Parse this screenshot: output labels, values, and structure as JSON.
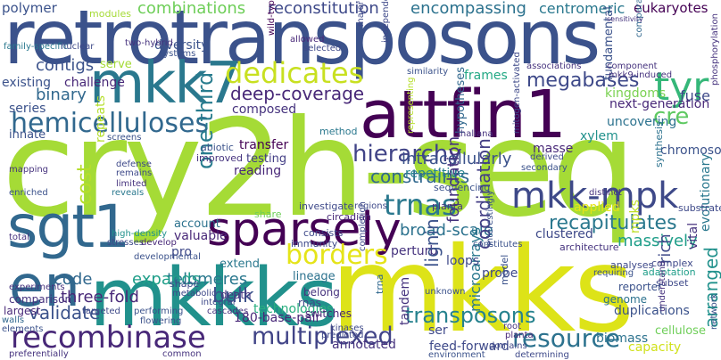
{
  "words": [
    {
      "text": "cry2h-seq",
      "color": "#a5db36"
    },
    {
      "text": "mkks",
      "color": "#dde318"
    },
    {
      "text": "retrotransposons",
      "color": "#3b528b"
    },
    {
      "text": "attfin1",
      "color": "#440154"
    },
    {
      "text": "mkkks",
      "color": "#21918c"
    },
    {
      "text": "mkk7",
      "color": "#2a788e"
    },
    {
      "text": "sgt1",
      "color": "#31688e"
    },
    {
      "text": "en",
      "color": "#31688e"
    },
    {
      "text": "sparsely",
      "color": "#440154"
    },
    {
      "text": "recombinase",
      "color": "#482878"
    },
    {
      "text": "hemicelluloses",
      "color": "#31688e"
    },
    {
      "text": "dedicates",
      "color": "#c8e020"
    },
    {
      "text": "tyr",
      "color": "#35b779"
    },
    {
      "text": "cre",
      "color": "#5ec962"
    },
    {
      "text": "mkk-mpk",
      "color": "#3e4989"
    },
    {
      "text": "trnas",
      "color": "#2a788e"
    },
    {
      "text": "borders",
      "color": "#e5e419"
    },
    {
      "text": "multiplexed",
      "color": "#414487"
    },
    {
      "text": "resource",
      "color": "#2c728e"
    },
    {
      "text": "transposons",
      "color": "#26828e"
    },
    {
      "text": "combinations",
      "color": "#6ece58"
    },
    {
      "text": "reconstitution",
      "color": "#3e4989"
    },
    {
      "text": "encompassing",
      "color": "#2c728e"
    },
    {
      "text": "centromeric",
      "color": "#2a788e"
    },
    {
      "text": "eukaryotes",
      "color": "#440154"
    },
    {
      "text": "polymer",
      "color": "#3b528b"
    },
    {
      "text": "megabases",
      "color": "#3e4989"
    },
    {
      "text": "deep-coverage",
      "color": "#482878"
    },
    {
      "text": "contigs",
      "color": "#3b528b"
    },
    {
      "text": "binary",
      "color": "#31688e"
    },
    {
      "text": "hierarchy",
      "color": "#414487"
    },
    {
      "text": "intracellularly",
      "color": "#3b528b"
    },
    {
      "text": "constraints",
      "color": "#31688e"
    },
    {
      "text": "one-third",
      "color": "#287c8e"
    },
    {
      "text": "cost",
      "color": "#b5de2b"
    },
    {
      "text": "bulk",
      "color": "#3b528b"
    },
    {
      "text": "three-fold",
      "color": "#482878"
    },
    {
      "text": "broad-scale",
      "color": "#2c728e"
    },
    {
      "text": "coordination",
      "color": "#433e85"
    },
    {
      "text": "recapitulates",
      "color": "#2a788e"
    },
    {
      "text": "arranged",
      "color": "#21918c"
    },
    {
      "text": "massively",
      "color": "#1f9e89"
    },
    {
      "text": "telomeres",
      "color": "#2a788e"
    },
    {
      "text": "expands",
      "color": "#1f9e89"
    },
    {
      "text": "code",
      "color": "#31688e"
    },
    {
      "text": "validate",
      "color": "#3b528b"
    },
    {
      "text": "foundation",
      "color": "#46337e"
    },
    {
      "text": "repetitive",
      "color": "#26828e"
    },
    {
      "text": "frames",
      "color": "#22a884"
    },
    {
      "text": "kingdoms",
      "color": "#7ad151"
    },
    {
      "text": "fuse",
      "color": "#3e4989"
    },
    {
      "text": "rich",
      "color": "#3e4989"
    },
    {
      "text": "mpks",
      "color": "#bddf26"
    },
    {
      "text": "technologies",
      "color": "#29af7f"
    },
    {
      "text": "180-base-pair",
      "color": "#482878"
    },
    {
      "text": "ser",
      "color": "#3e4989"
    },
    {
      "text": "annotated",
      "color": "#46337e"
    },
    {
      "text": "feed-forward",
      "color": "#3e4989"
    },
    {
      "text": "duplications",
      "color": "#3b528b"
    },
    {
      "text": "biomass",
      "color": "#2c728e"
    },
    {
      "text": "capacity",
      "color": "#d0e11c"
    },
    {
      "text": "cellulose",
      "color": "#6ece58"
    },
    {
      "text": "genome",
      "color": "#2c728e"
    },
    {
      "text": "tandem",
      "color": "#46337e"
    },
    {
      "text": "microarrays",
      "color": "#2a788e"
    },
    {
      "text": "probe",
      "color": "#3e4989"
    },
    {
      "text": "lineage",
      "color": "#2c728e"
    },
    {
      "text": "loops",
      "color": "#3e4989"
    },
    {
      "text": "perturb",
      "color": "#46337e"
    },
    {
      "text": "clustered",
      "color": "#3e4989"
    },
    {
      "text": "applied",
      "color": "#e5e419"
    },
    {
      "text": "pro",
      "color": "#3e4989"
    },
    {
      "text": "valuable",
      "color": "#482878"
    },
    {
      "text": "extend",
      "color": "#2a788e"
    },
    {
      "text": "account",
      "color": "#2c728e"
    },
    {
      "text": "innate",
      "color": "#3b528b"
    },
    {
      "text": "series",
      "color": "#3b528b"
    },
    {
      "text": "existing",
      "color": "#3b528b"
    },
    {
      "text": "challenge",
      "color": "#482878"
    },
    {
      "text": "serve",
      "color": "#a5db36"
    },
    {
      "text": "composed",
      "color": "#46337e"
    },
    {
      "text": "next-generation",
      "color": "#482878"
    },
    {
      "text": "uncovering",
      "color": "#2c728e"
    },
    {
      "text": "xylem",
      "color": "#21918c"
    },
    {
      "text": "chromosomes",
      "color": "#3b528b"
    },
    {
      "text": "masse",
      "color": "#482878"
    },
    {
      "text": "transfer",
      "color": "#440154"
    },
    {
      "text": "testing",
      "color": "#433e85"
    },
    {
      "text": "reading",
      "color": "#482878"
    },
    {
      "text": "repeats",
      "color": "#b5de2b"
    },
    {
      "text": "hypotheses",
      "color": "#31688e"
    },
    {
      "text": "fundamental",
      "color": "#3b528b"
    },
    {
      "text": "diversity",
      "color": "#3b528b"
    },
    {
      "text": "vital",
      "color": "#46337e"
    },
    {
      "text": "evolutionary",
      "color": "#2a788e"
    },
    {
      "text": "family-specific",
      "color": "#2a788e"
    },
    {
      "text": "nuclear",
      "color": "#3e4989"
    },
    {
      "text": "two-hybrid",
      "color": "#46337e"
    },
    {
      "text": "systems",
      "color": "#3b528b"
    },
    {
      "text": "modules",
      "color": "#a5db36"
    },
    {
      "text": "allowed",
      "color": "#482878"
    },
    {
      "text": "selected",
      "color": "#3e4989"
    },
    {
      "text": "major",
      "color": "#3e4989"
    },
    {
      "text": "wild-type",
      "color": "#440154"
    },
    {
      "text": "independent",
      "color": "#3e4989"
    },
    {
      "text": "comparative",
      "color": "#31688e"
    },
    {
      "text": "component",
      "color": "#46337e"
    },
    {
      "text": "associations",
      "color": "#46337e"
    },
    {
      "text": "mkk9-induced",
      "color": "#46337e"
    },
    {
      "text": "similarity",
      "color": "#3b528b"
    },
    {
      "text": "method",
      "color": "#2a788e"
    },
    {
      "text": "thaliana",
      "color": "#46337e"
    },
    {
      "text": "derived",
      "color": "#3e4989"
    },
    {
      "text": "secondary",
      "color": "#3b528b"
    },
    {
      "text": "sequencing",
      "color": "#3b528b"
    },
    {
      "text": "distinct",
      "color": "#46337e"
    },
    {
      "text": "regions",
      "color": "#3e4989"
    },
    {
      "text": "planta",
      "color": "#46337e"
    },
    {
      "text": "substrates",
      "color": "#3e4989"
    },
    {
      "text": "synthesis",
      "color": "#2c728e"
    },
    {
      "text": "investigate",
      "color": "#3e4989"
    },
    {
      "text": "circadian",
      "color": "#482878"
    },
    {
      "text": "abiotic",
      "color": "#3b528b"
    },
    {
      "text": "improved",
      "color": "#46337e"
    },
    {
      "text": "screens",
      "color": "#3b528b"
    },
    {
      "text": "defense",
      "color": "#3e4989"
    },
    {
      "text": "remains",
      "color": "#3e4989"
    },
    {
      "text": "limited",
      "color": "#46337e"
    },
    {
      "text": "reveals",
      "color": "#2a788e"
    },
    {
      "text": "enriched",
      "color": "#3b528b"
    },
    {
      "text": "mapping",
      "color": "#46337e"
    },
    {
      "text": "total",
      "color": "#46337e"
    },
    {
      "text": "high-density",
      "color": "#21918c"
    },
    {
      "text": "stresses",
      "color": "#3e4989"
    },
    {
      "text": "develop",
      "color": "#482878"
    },
    {
      "text": "share",
      "color": "#6ece58"
    },
    {
      "text": "consists",
      "color": "#3e4989"
    },
    {
      "text": "immunity",
      "color": "#3e4989"
    },
    {
      "text": "constitutes",
      "color": "#3b528b"
    },
    {
      "text": "architecture",
      "color": "#46337e"
    },
    {
      "text": "complex",
      "color": "#3e4989"
    },
    {
      "text": "analyses",
      "color": "#3e4989"
    },
    {
      "text": "adaptation",
      "color": "#1f9e89"
    },
    {
      "text": "subset",
      "color": "#3e4989"
    },
    {
      "text": "understand",
      "color": "#46337e"
    },
    {
      "text": "reporter",
      "color": "#3b528b"
    },
    {
      "text": "network",
      "color": "#3b528b"
    },
    {
      "text": "experiments",
      "color": "#46337e"
    },
    {
      "text": "comparison",
      "color": "#46337e"
    },
    {
      "text": "largest",
      "color": "#482878"
    },
    {
      "text": "walls",
      "color": "#31688e"
    },
    {
      "text": "elements",
      "color": "#3b528b"
    },
    {
      "text": "targeted",
      "color": "#3e4989"
    },
    {
      "text": "performing",
      "color": "#3b528b"
    },
    {
      "text": "metabolic",
      "color": "#3e4989"
    },
    {
      "text": "integral",
      "color": "#3e4989"
    },
    {
      "text": "death",
      "color": "#46337e"
    },
    {
      "text": "belong",
      "color": "#46337e"
    },
    {
      "text": "rnas",
      "color": "#3e4989"
    },
    {
      "text": "switches",
      "color": "#482878"
    },
    {
      "text": "shape",
      "color": "#3e4989"
    },
    {
      "text": "cascades",
      "color": "#46337e"
    },
    {
      "text": "flowering",
      "color": "#3b528b"
    },
    {
      "text": "kinases",
      "color": "#3e4989"
    },
    {
      "text": "predicted",
      "color": "#3e4989"
    },
    {
      "text": "environment",
      "color": "#3b528b"
    },
    {
      "text": "determining",
      "color": "#3e4989"
    },
    {
      "text": "preferentially",
      "color": "#46337e"
    },
    {
      "text": "common",
      "color": "#46337e"
    },
    {
      "text": "unknown",
      "color": "#3b528b"
    },
    {
      "text": "requiring",
      "color": "#3b528b"
    },
    {
      "text": "domains",
      "color": "#3e4989"
    },
    {
      "text": "model",
      "color": "#3b528b"
    },
    {
      "text": "lignin",
      "color": "#3b528b"
    },
    {
      "text": "trna",
      "color": "#31688e"
    },
    {
      "text": "completion",
      "color": "#3e4989"
    },
    {
      "text": "interestingly",
      "color": "#3b528b"
    },
    {
      "text": "phosphorylation",
      "color": "#46337e"
    },
    {
      "text": "sensitivity",
      "color": "#46337e"
    },
    {
      "text": "mitogen-activated",
      "color": "#3e4989"
    },
    {
      "text": "representing",
      "color": "#b5de2b"
    },
    {
      "text": "developmental",
      "color": "#3b528b"
    },
    {
      "text": "planta",
      "color": "#482878"
    },
    {
      "text": "root",
      "color": "#46337e"
    },
    {
      "text": "dna",
      "color": "#3e4989"
    }
  ]
}
